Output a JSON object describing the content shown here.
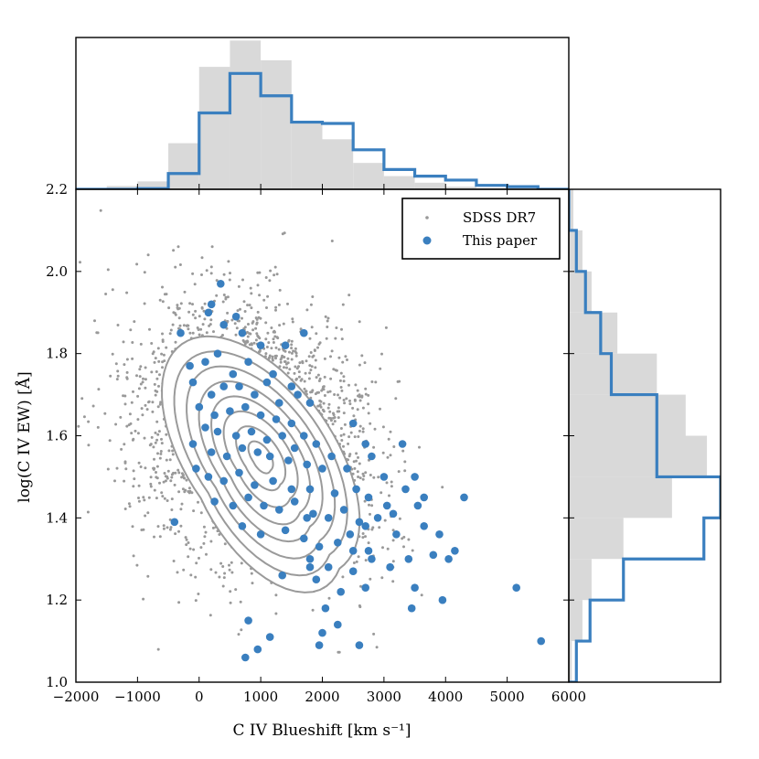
{
  "colors": {
    "background": "#sdss",
    "sdss_points": "#999999",
    "this_paper": "#3a7fbf",
    "histogram_fill": "#d9d9d9",
    "contour": "#9a9a9a",
    "axis": "#000000"
  },
  "chart_data": {
    "type": "scatter",
    "xlabel": "C IV Blueshift [km s⁻¹]",
    "ylabel": "log(C IV EW) [Å]",
    "xlim": [
      -2000,
      6000
    ],
    "ylim": [
      1.0,
      2.2
    ],
    "x_ticks": [
      -2000,
      -1000,
      0,
      1000,
      2000,
      3000,
      4000,
      5000,
      6000
    ],
    "y_ticks": [
      1.0,
      1.2,
      1.4,
      1.6,
      1.8,
      2.0,
      2.2
    ],
    "x_tick_labels": [
      "−2000",
      "−1000",
      "0",
      "1000",
      "2000",
      "3000",
      "4000",
      "5000",
      "6000"
    ],
    "y_tick_labels": [
      "1.0",
      "1.2",
      "1.4",
      "1.6",
      "1.8",
      "2.0",
      "2.2"
    ],
    "legend": {
      "placement": "top-right",
      "entries": [
        {
          "label": "SDSS DR7",
          "marker": "small-dot",
          "color": "#999999"
        },
        {
          "label": "This paper",
          "marker": "circle",
          "color": "#3a7fbf"
        }
      ]
    },
    "series": [
      {
        "name": "SDSS DR7",
        "kind": "density",
        "description_values": {
          "count_approx": 3000,
          "centroid": [
            900,
            1.6
          ],
          "contour_levels": 8
        }
      },
      {
        "name": "This paper",
        "kind": "points",
        "points": [
          [
            200,
            1.92
          ],
          [
            350,
            1.97
          ],
          [
            600,
            1.89
          ],
          [
            400,
            1.87
          ],
          [
            150,
            1.9
          ],
          [
            700,
            1.85
          ],
          [
            -300,
            1.85
          ],
          [
            1000,
            1.82
          ],
          [
            1400,
            1.82
          ],
          [
            1700,
            1.85
          ],
          [
            -150,
            1.77
          ],
          [
            100,
            1.78
          ],
          [
            300,
            1.8
          ],
          [
            550,
            1.75
          ],
          [
            800,
            1.78
          ],
          [
            1200,
            1.75
          ],
          [
            1500,
            1.72
          ],
          [
            -100,
            1.73
          ],
          [
            200,
            1.7
          ],
          [
            400,
            1.72
          ],
          [
            650,
            1.72
          ],
          [
            900,
            1.7
          ],
          [
            1100,
            1.73
          ],
          [
            1300,
            1.68
          ],
          [
            1600,
            1.7
          ],
          [
            1800,
            1.68
          ],
          [
            0,
            1.67
          ],
          [
            250,
            1.65
          ],
          [
            500,
            1.66
          ],
          [
            750,
            1.67
          ],
          [
            1000,
            1.65
          ],
          [
            1250,
            1.64
          ],
          [
            1500,
            1.63
          ],
          [
            1700,
            1.6
          ],
          [
            2500,
            1.63
          ],
          [
            100,
            1.62
          ],
          [
            300,
            1.61
          ],
          [
            600,
            1.6
          ],
          [
            850,
            1.61
          ],
          [
            1100,
            1.59
          ],
          [
            1350,
            1.6
          ],
          [
            1550,
            1.57
          ],
          [
            1900,
            1.58
          ],
          [
            2150,
            1.55
          ],
          [
            2700,
            1.58
          ],
          [
            3300,
            1.58
          ],
          [
            -100,
            1.58
          ],
          [
            200,
            1.56
          ],
          [
            450,
            1.55
          ],
          [
            700,
            1.57
          ],
          [
            950,
            1.56
          ],
          [
            1150,
            1.55
          ],
          [
            1450,
            1.54
          ],
          [
            1750,
            1.53
          ],
          [
            2000,
            1.52
          ],
          [
            2400,
            1.52
          ],
          [
            2800,
            1.55
          ],
          [
            3000,
            1.5
          ],
          [
            3500,
            1.5
          ],
          [
            -50,
            1.52
          ],
          [
            150,
            1.5
          ],
          [
            400,
            1.49
          ],
          [
            650,
            1.51
          ],
          [
            900,
            1.48
          ],
          [
            1200,
            1.49
          ],
          [
            1500,
            1.47
          ],
          [
            1800,
            1.47
          ],
          [
            2200,
            1.46
          ],
          [
            2550,
            1.47
          ],
          [
            2750,
            1.45
          ],
          [
            3050,
            1.43
          ],
          [
            3350,
            1.47
          ],
          [
            3650,
            1.45
          ],
          [
            4300,
            1.45
          ],
          [
            250,
            1.44
          ],
          [
            550,
            1.43
          ],
          [
            800,
            1.45
          ],
          [
            1050,
            1.43
          ],
          [
            1300,
            1.42
          ],
          [
            1550,
            1.44
          ],
          [
            1850,
            1.41
          ],
          [
            2100,
            1.4
          ],
          [
            2350,
            1.42
          ],
          [
            2600,
            1.39
          ],
          [
            2900,
            1.4
          ],
          [
            3150,
            1.41
          ],
          [
            3550,
            1.43
          ],
          [
            -400,
            1.39
          ],
          [
            700,
            1.38
          ],
          [
            1000,
            1.36
          ],
          [
            1400,
            1.37
          ],
          [
            1700,
            1.35
          ],
          [
            1950,
            1.33
          ],
          [
            2250,
            1.34
          ],
          [
            2450,
            1.36
          ],
          [
            2750,
            1.32
          ],
          [
            3200,
            1.36
          ],
          [
            3650,
            1.38
          ],
          [
            3900,
            1.36
          ],
          [
            1800,
            1.3
          ],
          [
            2100,
            1.28
          ],
          [
            2500,
            1.27
          ],
          [
            2800,
            1.3
          ],
          [
            3100,
            1.28
          ],
          [
            3400,
            1.3
          ],
          [
            3800,
            1.31
          ],
          [
            4050,
            1.3
          ],
          [
            4150,
            1.32
          ],
          [
            2500,
            1.32
          ],
          [
            1800,
            1.28
          ],
          [
            1350,
            1.26
          ],
          [
            1900,
            1.25
          ],
          [
            2300,
            1.22
          ],
          [
            2700,
            1.23
          ],
          [
            3500,
            1.23
          ],
          [
            3950,
            1.2
          ],
          [
            5150,
            1.23
          ],
          [
            2050,
            1.18
          ],
          [
            3450,
            1.18
          ],
          [
            2000,
            1.12
          ],
          [
            1150,
            1.11
          ],
          [
            800,
            1.15
          ],
          [
            2250,
            1.14
          ],
          [
            1950,
            1.09
          ],
          [
            2600,
            1.09
          ],
          [
            5550,
            1.1
          ],
          [
            950,
            1.08
          ],
          [
            750,
            1.06
          ],
          [
            2700,
            1.38
          ],
          [
            1750,
            1.4
          ]
        ]
      }
    ],
    "top_histogram": {
      "bin_edges": [
        -2000,
        -1500,
        -1000,
        -500,
        0,
        500,
        1000,
        1500,
        2000,
        2500,
        3000,
        3500,
        4000,
        4500,
        5000,
        5500,
        6000
      ],
      "sdss_fill_values": [
        0.005,
        0.025,
        0.06,
        0.35,
        0.93,
        1.13,
        0.98,
        0.5,
        0.38,
        0.2,
        0.1,
        0.05,
        0.02,
        0.01,
        0.005,
        0.0
      ],
      "this_paper_step_values": [
        0.0,
        0.0,
        0.005,
        0.12,
        0.58,
        0.88,
        0.71,
        0.51,
        0.5,
        0.3,
        0.15,
        0.1,
        0.07,
        0.03,
        0.02,
        0.0
      ]
    },
    "right_histogram": {
      "bin_edges": [
        1.0,
        1.1,
        1.2,
        1.3,
        1.4,
        1.5,
        1.6,
        1.7,
        1.8,
        1.9,
        2.0,
        2.1,
        2.2
      ],
      "sdss_fill_values": [
        0.02,
        0.09,
        0.15,
        0.36,
        0.68,
        0.91,
        0.77,
        0.58,
        0.32,
        0.15,
        0.09,
        0.03
      ],
      "this_paper_step_values": [
        0.05,
        0.14,
        0.36,
        0.89,
        1.0,
        0.58,
        0.58,
        0.28,
        0.21,
        0.11,
        0.05,
        0.0
      ]
    }
  }
}
